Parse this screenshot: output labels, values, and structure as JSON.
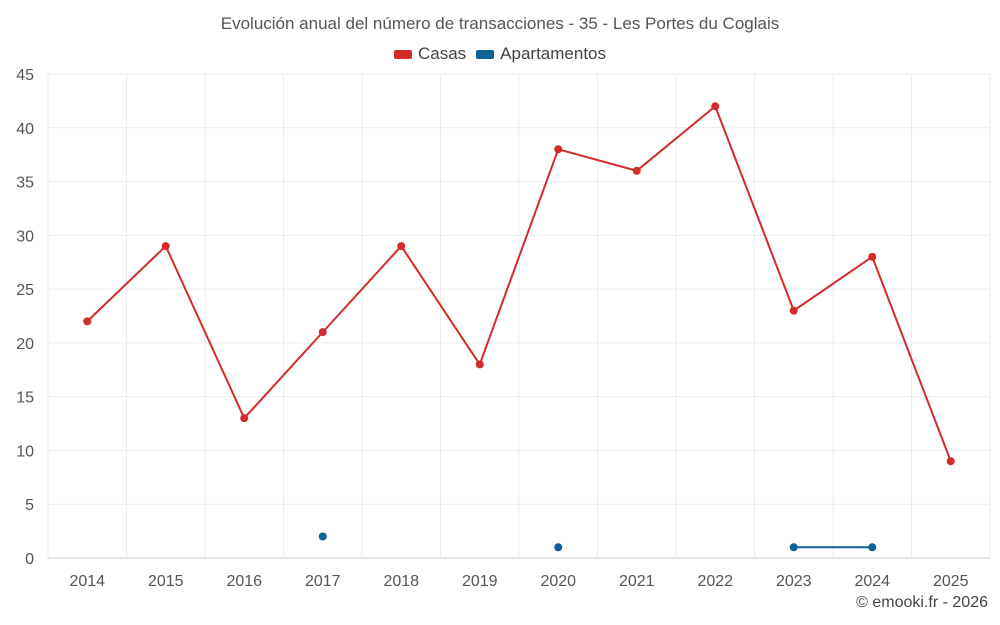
{
  "chart_data": {
    "type": "line",
    "title": "Evolución anual del número de transacciones - 35 - Les Portes du Coglais",
    "categories": [
      "2014",
      "2015",
      "2016",
      "2017",
      "2018",
      "2019",
      "2020",
      "2021",
      "2022",
      "2023",
      "2024",
      "2025"
    ],
    "series": [
      {
        "name": "Casas",
        "color": "#d32a2a",
        "values": [
          22,
          29,
          13,
          21,
          29,
          18,
          38,
          36,
          42,
          23,
          28,
          9
        ]
      },
      {
        "name": "Apartamentos",
        "color": "#0d6196",
        "values": [
          null,
          null,
          null,
          2,
          null,
          null,
          1,
          null,
          null,
          1,
          1,
          null
        ]
      }
    ],
    "ylim": [
      0,
      45
    ],
    "yticks": [
      0,
      5,
      10,
      15,
      20,
      25,
      30,
      35,
      40,
      45
    ],
    "legend_position": "top-center",
    "grid": true
  },
  "footer": {
    "copyright": "© emooki.fr - 2026"
  }
}
